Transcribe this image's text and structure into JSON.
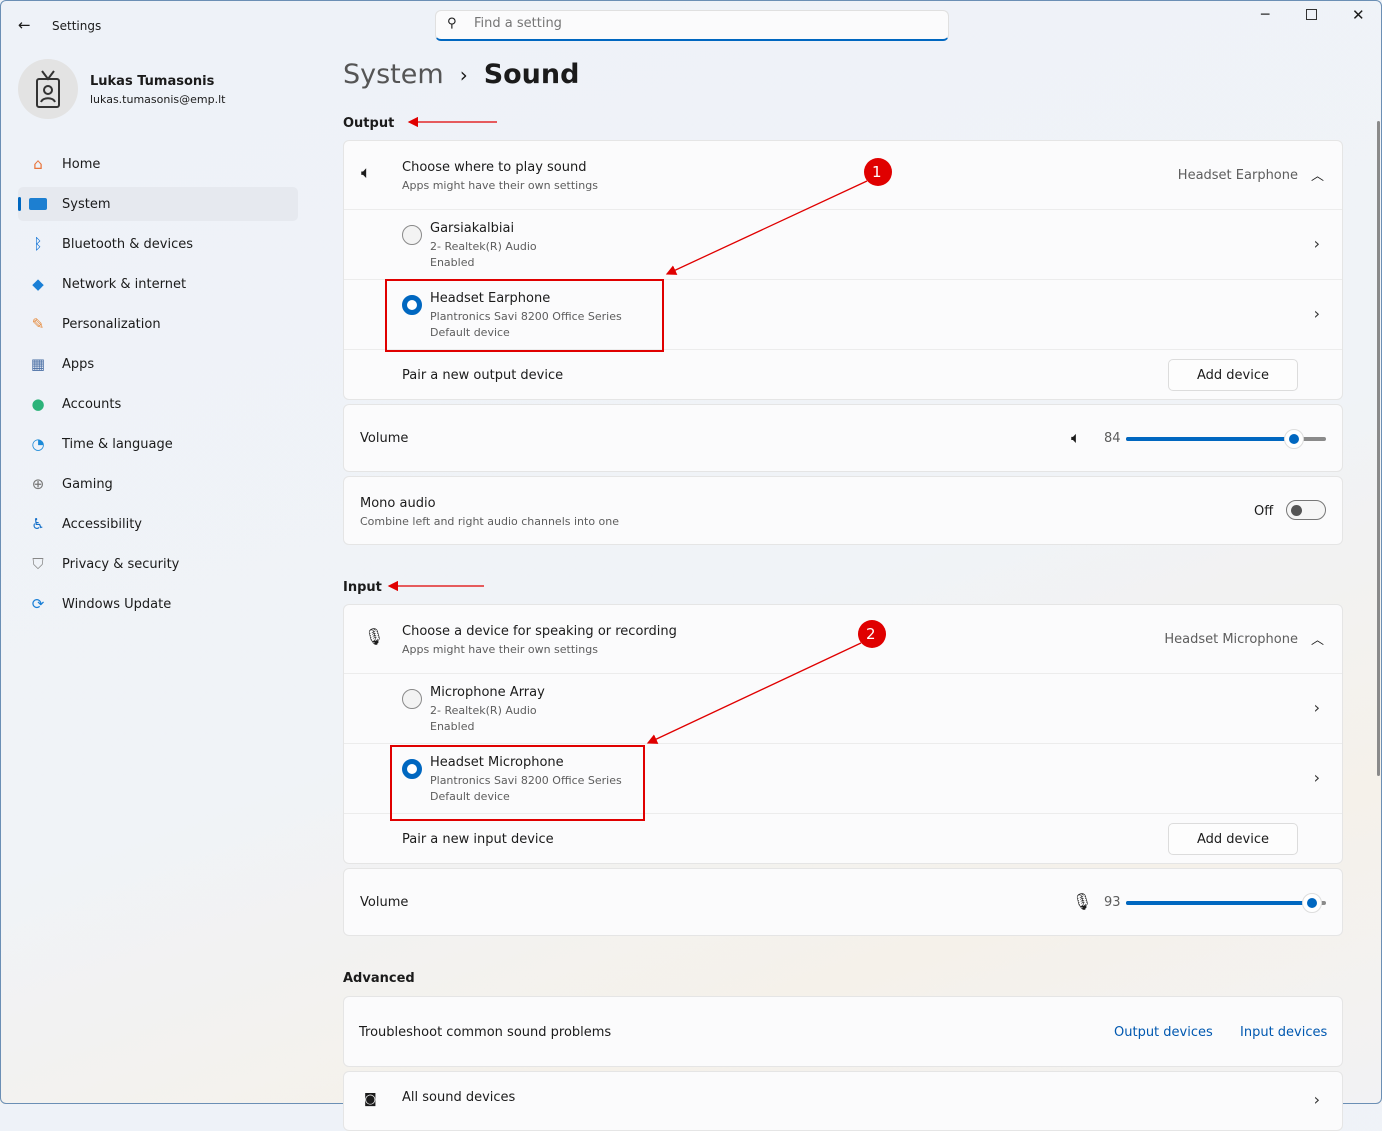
{
  "window": {
    "title": "Settings"
  },
  "search": {
    "placeholder": "Find a setting"
  },
  "user": {
    "name": "Lukas Tumasonis",
    "email": "lukas.tumasonis@emp.lt"
  },
  "sidebar": {
    "items": [
      {
        "label": "Home",
        "icon": "home-icon"
      },
      {
        "label": "System",
        "icon": "system-icon",
        "active": true
      },
      {
        "label": "Bluetooth & devices",
        "icon": "bluetooth-icon"
      },
      {
        "label": "Network & internet",
        "icon": "wifi-icon"
      },
      {
        "label": "Personalization",
        "icon": "brush-icon"
      },
      {
        "label": "Apps",
        "icon": "apps-icon"
      },
      {
        "label": "Accounts",
        "icon": "accounts-icon"
      },
      {
        "label": "Time & language",
        "icon": "globe-clock-icon"
      },
      {
        "label": "Gaming",
        "icon": "gamepad-icon"
      },
      {
        "label": "Accessibility",
        "icon": "accessibility-icon"
      },
      {
        "label": "Privacy & security",
        "icon": "shield-icon"
      },
      {
        "label": "Windows Update",
        "icon": "update-icon"
      }
    ]
  },
  "breadcrumb": {
    "parent": "System",
    "sep": "›",
    "current": "Sound"
  },
  "output": {
    "section": "Output",
    "header": {
      "title": "Choose where to play sound",
      "subtitle": "Apps might have their own settings",
      "selected": "Headset Earphone"
    },
    "devices": [
      {
        "name": "Garsiakalbiai",
        "detail": "2- Realtek(R) Audio",
        "status": "Enabled",
        "selected": false
      },
      {
        "name": "Headset Earphone",
        "detail": "Plantronics Savi 8200 Office Series",
        "status": "Default device",
        "selected": true
      }
    ],
    "pair": {
      "label": "Pair a new output device",
      "button": "Add device"
    },
    "volume": {
      "label": "Volume",
      "value": "84",
      "percent": 84
    },
    "mono": {
      "title": "Mono audio",
      "subtitle": "Combine left and right audio channels into one",
      "state": "Off"
    }
  },
  "input": {
    "section": "Input",
    "header": {
      "title": "Choose a device for speaking or recording",
      "subtitle": "Apps might have their own settings",
      "selected": "Headset Microphone"
    },
    "devices": [
      {
        "name": "Microphone Array",
        "detail": "2- Realtek(R) Audio",
        "status": "Enabled",
        "selected": false
      },
      {
        "name": "Headset Microphone",
        "detail": "Plantronics Savi 8200 Office Series",
        "status": "Default device",
        "selected": true
      }
    ],
    "pair": {
      "label": "Pair a new input device",
      "button": "Add device"
    },
    "volume": {
      "label": "Volume",
      "value": "93",
      "percent": 93
    }
  },
  "advanced": {
    "section": "Advanced",
    "troubleshoot": {
      "label": "Troubleshoot common sound problems",
      "link1": "Output devices",
      "link2": "Input devices"
    },
    "all_devices": "All sound devices"
  },
  "annotations": {
    "marker1": "1",
    "marker2": "2",
    "color": "#e00000"
  },
  "colors": {
    "accent": "#0067c0"
  }
}
